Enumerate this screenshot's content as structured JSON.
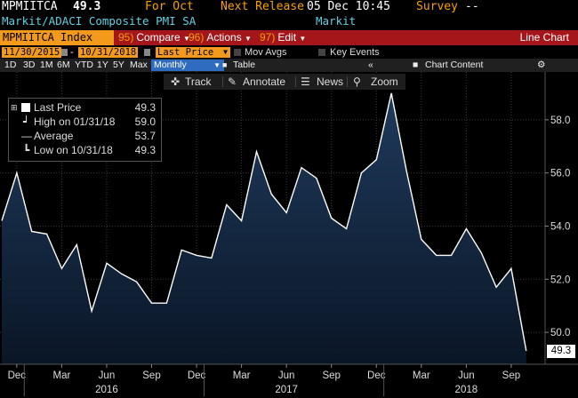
{
  "header": {
    "ticker": "MPMIITCA",
    "last_value": "49.3",
    "for_label": "For Oct",
    "next_release_label": "Next Release",
    "next_release_value": "05 Dec 10:45",
    "survey_label": "Survey",
    "survey_value": "--",
    "description": "Markit/ADACI Composite PMI SA",
    "source": "Markit"
  },
  "menubar": {
    "security": "MPMIITCA Index",
    "compare_num": "95)",
    "compare": "Compare",
    "actions_num": "96)",
    "actions": "Actions",
    "edit_num": "97)",
    "edit": "Edit",
    "chart_type": "Line Chart"
  },
  "date_range": {
    "start": "11/30/2015",
    "end": "10/31/2018",
    "field": "Last Price",
    "mov_avgs": "Mov Avgs",
    "key_events": "Key Events"
  },
  "periods": {
    "items": [
      "1D",
      "3D",
      "1M",
      "6M",
      "YTD",
      "1Y",
      "5Y",
      "Max"
    ],
    "selected": "Monthly",
    "table": "Table",
    "chart_content": "Chart Content"
  },
  "toolbar": {
    "track": "Track",
    "annotate": "Annotate",
    "news": "News",
    "zoom": "Zoom"
  },
  "legend": {
    "last_price_label": "Last Price",
    "last_price_value": "49.3",
    "high_label": "High on 01/31/18",
    "high_value": "59.0",
    "average_label": "Average",
    "average_value": "53.7",
    "low_label": "Low on 10/31/18",
    "low_value": "49.3"
  },
  "colors": {
    "accent_orange": "#f39a1c",
    "menubar_red": "#a4161a",
    "series_line": "#ffffff",
    "area_fill_top": "#1f3a5c",
    "area_fill_bottom": "#0a1626"
  },
  "chart_data": {
    "type": "area",
    "x": [
      "2015-11",
      "2015-12",
      "2016-01",
      "2016-02",
      "2016-03",
      "2016-04",
      "2016-05",
      "2016-06",
      "2016-07",
      "2016-08",
      "2016-09",
      "2016-10",
      "2016-11",
      "2016-12",
      "2017-01",
      "2017-02",
      "2017-03",
      "2017-04",
      "2017-05",
      "2017-06",
      "2017-07",
      "2017-08",
      "2017-09",
      "2017-10",
      "2017-11",
      "2017-12",
      "2018-01",
      "2018-02",
      "2018-03",
      "2018-04",
      "2018-05",
      "2018-06",
      "2018-07",
      "2018-08",
      "2018-09",
      "2018-10"
    ],
    "values": [
      54.2,
      56.0,
      53.8,
      53.7,
      52.4,
      53.3,
      50.8,
      52.6,
      52.2,
      51.9,
      51.1,
      51.1,
      53.1,
      52.9,
      52.8,
      54.8,
      54.2,
      56.8,
      55.2,
      54.5,
      56.2,
      55.8,
      54.3,
      53.9,
      56.0,
      56.5,
      59.0,
      56.1,
      53.5,
      52.9,
      52.9,
      53.9,
      53.0,
      51.7,
      52.4,
      49.3
    ],
    "last_value_tag": "49.3",
    "ylim": [
      48.8,
      59.8
    ],
    "yticks": [
      "50.0",
      "52.0",
      "54.0",
      "56.0",
      "58.0"
    ],
    "month_ticks": [
      {
        "date": "2015-12",
        "label": "Dec"
      },
      {
        "date": "2016-03",
        "label": "Mar"
      },
      {
        "date": "2016-06",
        "label": "Jun"
      },
      {
        "date": "2016-09",
        "label": "Sep"
      },
      {
        "date": "2016-12",
        "label": "Dec"
      },
      {
        "date": "2017-03",
        "label": "Mar"
      },
      {
        "date": "2017-06",
        "label": "Jun"
      },
      {
        "date": "2017-09",
        "label": "Sep"
      },
      {
        "date": "2017-12",
        "label": "Dec"
      },
      {
        "date": "2018-03",
        "label": "Mar"
      },
      {
        "date": "2018-06",
        "label": "Jun"
      },
      {
        "date": "2018-09",
        "label": "Sep"
      }
    ],
    "year_labels": [
      {
        "date": "2016-06",
        "label": "2016"
      },
      {
        "date": "2017-06",
        "label": "2017"
      },
      {
        "date": "2018-06",
        "label": "2018"
      }
    ],
    "grid": true
  }
}
